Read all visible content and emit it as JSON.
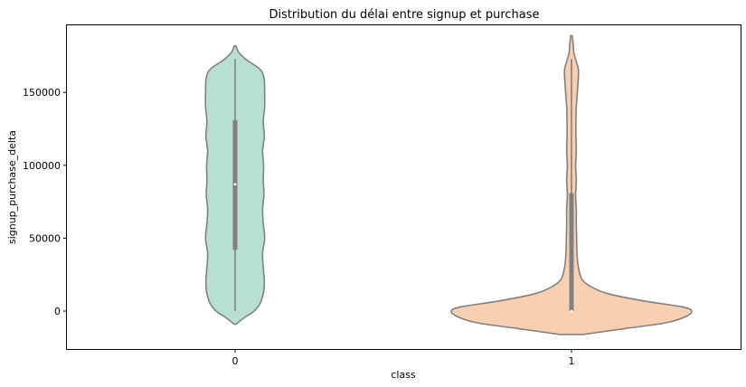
{
  "chart_data": {
    "type": "violin",
    "title": "Distribution du délai entre signup et purchase",
    "xlabel": "class",
    "ylabel": "signup_purchase_delta",
    "categories": [
      "0",
      "1"
    ],
    "ylim": [
      -26000,
      196000
    ],
    "yticks": [
      0,
      50000,
      100000,
      150000
    ],
    "ytick_labels": [
      "0",
      "50000",
      "100000",
      "150000"
    ],
    "grid": false,
    "legend": "none",
    "colors": {
      "0": "#b8e0d0",
      "1": "#f8cfb0",
      "outline": "#808080",
      "box": "#808080"
    },
    "series": [
      {
        "category": "0",
        "range": [
          -9000,
          182000
        ],
        "whisker": [
          0,
          173000
        ],
        "box": [
          42000,
          131000
        ],
        "median": 87000,
        "density": [
          [
            -9000,
            0.02
          ],
          [
            -4000,
            0.3
          ],
          [
            0,
            0.55
          ],
          [
            5000,
            0.72
          ],
          [
            12000,
            0.82
          ],
          [
            20000,
            0.85
          ],
          [
            30000,
            0.82
          ],
          [
            40000,
            0.8
          ],
          [
            50000,
            0.86
          ],
          [
            60000,
            0.82
          ],
          [
            70000,
            0.8
          ],
          [
            80000,
            0.84
          ],
          [
            90000,
            0.82
          ],
          [
            100000,
            0.83
          ],
          [
            110000,
            0.8
          ],
          [
            120000,
            0.85
          ],
          [
            130000,
            0.82
          ],
          [
            140000,
            0.86
          ],
          [
            150000,
            0.86
          ],
          [
            160000,
            0.84
          ],
          [
            166000,
            0.72
          ],
          [
            172000,
            0.35
          ],
          [
            177000,
            0.12
          ],
          [
            182000,
            0.02
          ]
        ]
      },
      {
        "category": "1",
        "range": [
          -16000,
          189000
        ],
        "whisker": [
          0,
          173000
        ],
        "box": [
          0,
          81000
        ],
        "median": 0,
        "density": [
          [
            -16000,
            0.33
          ],
          [
            -12000,
            1.55
          ],
          [
            -8000,
            2.75
          ],
          [
            -4000,
            3.3
          ],
          [
            0,
            3.5
          ],
          [
            3000,
            3.2
          ],
          [
            7000,
            2.1
          ],
          [
            12000,
            1.05
          ],
          [
            17000,
            0.55
          ],
          [
            22000,
            0.3
          ],
          [
            30000,
            0.2
          ],
          [
            40000,
            0.16
          ],
          [
            50000,
            0.15
          ],
          [
            60000,
            0.14
          ],
          [
            70000,
            0.14
          ],
          [
            80000,
            0.12
          ],
          [
            90000,
            0.14
          ],
          [
            100000,
            0.12
          ],
          [
            110000,
            0.14
          ],
          [
            120000,
            0.13
          ],
          [
            130000,
            0.13
          ],
          [
            140000,
            0.14
          ],
          [
            150000,
            0.17
          ],
          [
            160000,
            0.2
          ],
          [
            166000,
            0.2
          ],
          [
            172000,
            0.13
          ],
          [
            177000,
            0.07
          ],
          [
            183000,
            0.05
          ],
          [
            189000,
            0.02
          ]
        ]
      }
    ]
  }
}
